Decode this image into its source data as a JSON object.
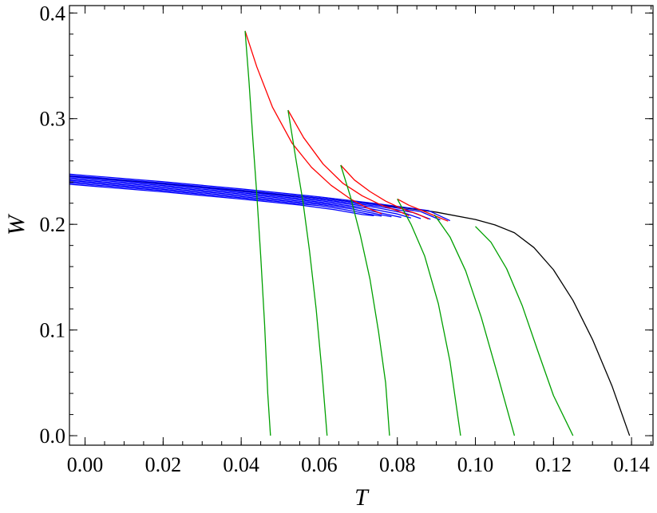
{
  "chart_data": {
    "type": "line",
    "title": "",
    "xlabel": "T",
    "ylabel": "W",
    "xlim": [
      -0.004,
      0.1455
    ],
    "ylim": [
      -0.009,
      0.407
    ],
    "x_ticks": [
      {
        "value": 0.0,
        "label": "0.00"
      },
      {
        "value": 0.02,
        "label": "0.02"
      },
      {
        "value": 0.04,
        "label": "0.04"
      },
      {
        "value": 0.06,
        "label": "0.06"
      },
      {
        "value": 0.08,
        "label": "0.08"
      },
      {
        "value": 0.1,
        "label": "0.10"
      },
      {
        "value": 0.12,
        "label": "0.12"
      },
      {
        "value": 0.14,
        "label": "0.14"
      }
    ],
    "y_ticks": [
      {
        "value": 0.0,
        "label": "0.0"
      },
      {
        "value": 0.1,
        "label": "0.1"
      },
      {
        "value": 0.2,
        "label": "0.2"
      },
      {
        "value": 0.3,
        "label": "0.3"
      },
      {
        "value": 0.4,
        "label": "0.4"
      }
    ],
    "x_minor_step": 0.005,
    "y_minor_step": 0.02,
    "grid": false,
    "legend": "none",
    "colors": {
      "black_curve": "#000000",
      "blue_band": "#0000ff",
      "red_curves": "#ff0000",
      "green_curves": "#00a000"
    },
    "series": [
      {
        "color": "#000000",
        "points": [
          [
            -0.004,
            0.2455
          ],
          [
            0.02,
            0.2383
          ],
          [
            0.04,
            0.2316
          ],
          [
            0.06,
            0.2248
          ],
          [
            0.08,
            0.2165
          ],
          [
            0.09,
            0.2115
          ],
          [
            0.1,
            0.2046
          ],
          [
            0.105,
            0.1995
          ],
          [
            0.11,
            0.192
          ],
          [
            0.115,
            0.178
          ],
          [
            0.12,
            0.157
          ],
          [
            0.125,
            0.128
          ],
          [
            0.13,
            0.091
          ],
          [
            0.135,
            0.047
          ],
          [
            0.1395,
            0.0
          ]
        ]
      },
      {
        "color": "#0000ff",
        "points": [
          [
            -0.004,
            0.2475
          ],
          [
            0.02,
            0.2403
          ],
          [
            0.04,
            0.2335
          ],
          [
            0.06,
            0.226
          ],
          [
            0.075,
            0.2195
          ],
          [
            0.088,
            0.213
          ],
          [
            0.0935,
            0.2035
          ]
        ]
      },
      {
        "color": "#0000ff",
        "points": [
          [
            -0.004,
            0.2463
          ],
          [
            0.02,
            0.2391
          ],
          [
            0.04,
            0.2323
          ],
          [
            0.06,
            0.2248
          ],
          [
            0.075,
            0.2183
          ],
          [
            0.086,
            0.212
          ],
          [
            0.091,
            0.2042
          ]
        ]
      },
      {
        "color": "#0000ff",
        "points": [
          [
            -0.004,
            0.2451
          ],
          [
            0.02,
            0.2379
          ],
          [
            0.04,
            0.2311
          ],
          [
            0.06,
            0.2236
          ],
          [
            0.075,
            0.2171
          ],
          [
            0.084,
            0.2112
          ],
          [
            0.0885,
            0.2048
          ]
        ]
      },
      {
        "color": "#0000ff",
        "points": [
          [
            -0.004,
            0.2439
          ],
          [
            0.02,
            0.2367
          ],
          [
            0.04,
            0.2299
          ],
          [
            0.06,
            0.2224
          ],
          [
            0.074,
            0.2163
          ],
          [
            0.082,
            0.2105
          ],
          [
            0.086,
            0.2054
          ]
        ]
      },
      {
        "color": "#0000ff",
        "points": [
          [
            -0.004,
            0.2427
          ],
          [
            0.02,
            0.2355
          ],
          [
            0.04,
            0.2287
          ],
          [
            0.06,
            0.2212
          ],
          [
            0.072,
            0.2156
          ],
          [
            0.08,
            0.2098
          ],
          [
            0.0835,
            0.206
          ]
        ]
      },
      {
        "color": "#0000ff",
        "points": [
          [
            -0.004,
            0.2415
          ],
          [
            0.02,
            0.2343
          ],
          [
            0.04,
            0.2275
          ],
          [
            0.06,
            0.22
          ],
          [
            0.07,
            0.2152
          ],
          [
            0.077,
            0.2098
          ],
          [
            0.081,
            0.2066
          ]
        ]
      },
      {
        "color": "#0000ff",
        "points": [
          [
            -0.004,
            0.2403
          ],
          [
            0.02,
            0.2331
          ],
          [
            0.04,
            0.2263
          ],
          [
            0.06,
            0.2188
          ],
          [
            0.068,
            0.2148
          ],
          [
            0.075,
            0.2097
          ],
          [
            0.0785,
            0.2072
          ]
        ]
      },
      {
        "color": "#0000ff",
        "points": [
          [
            -0.004,
            0.2391
          ],
          [
            0.02,
            0.2319
          ],
          [
            0.04,
            0.2251
          ],
          [
            0.06,
            0.2176
          ],
          [
            0.066,
            0.2143
          ],
          [
            0.073,
            0.2095
          ],
          [
            0.076,
            0.2078
          ]
        ]
      },
      {
        "color": "#0000ff",
        "points": [
          [
            -0.004,
            0.2379
          ],
          [
            0.02,
            0.2307
          ],
          [
            0.04,
            0.2239
          ],
          [
            0.055,
            0.2183
          ],
          [
            0.064,
            0.2138
          ],
          [
            0.071,
            0.2093
          ],
          [
            0.074,
            0.2082
          ]
        ]
      },
      {
        "color": "#ff0000",
        "points": [
          [
            0.041,
            0.383
          ],
          [
            0.044,
            0.349
          ],
          [
            0.048,
            0.311
          ],
          [
            0.053,
            0.277
          ],
          [
            0.058,
            0.254
          ],
          [
            0.063,
            0.237
          ],
          [
            0.068,
            0.224
          ],
          [
            0.072,
            0.216
          ],
          [
            0.076,
            0.21
          ]
        ]
      },
      {
        "color": "#ff0000",
        "points": [
          [
            0.052,
            0.308
          ],
          [
            0.056,
            0.282
          ],
          [
            0.061,
            0.257
          ],
          [
            0.066,
            0.239
          ],
          [
            0.071,
            0.227
          ],
          [
            0.076,
            0.218
          ],
          [
            0.08,
            0.213
          ],
          [
            0.083,
            0.208
          ]
        ]
      },
      {
        "color": "#ff0000",
        "points": [
          [
            0.0655,
            0.256
          ],
          [
            0.069,
            0.242
          ],
          [
            0.073,
            0.231
          ],
          [
            0.077,
            0.222
          ],
          [
            0.081,
            0.215
          ],
          [
            0.085,
            0.21
          ],
          [
            0.088,
            0.205
          ]
        ]
      },
      {
        "color": "#ff0000",
        "points": [
          [
            0.08,
            0.224
          ],
          [
            0.083,
            0.218
          ],
          [
            0.087,
            0.212
          ],
          [
            0.091,
            0.206
          ],
          [
            0.093,
            0.203
          ]
        ]
      },
      {
        "color": "#00a000",
        "points": [
          [
            0.041,
            0.383
          ],
          [
            0.042,
            0.335
          ],
          [
            0.043,
            0.28
          ],
          [
            0.044,
            0.228
          ],
          [
            0.045,
            0.17
          ],
          [
            0.046,
            0.105
          ],
          [
            0.0468,
            0.04
          ],
          [
            0.0475,
            0.0
          ]
        ]
      },
      {
        "color": "#00a000",
        "points": [
          [
            0.052,
            0.308
          ],
          [
            0.054,
            0.262
          ],
          [
            0.0558,
            0.222
          ],
          [
            0.0575,
            0.175
          ],
          [
            0.0592,
            0.12
          ],
          [
            0.0607,
            0.06
          ],
          [
            0.062,
            0.0
          ]
        ]
      },
      {
        "color": "#00a000",
        "points": [
          [
            0.0655,
            0.256
          ],
          [
            0.068,
            0.226
          ],
          [
            0.0705,
            0.19
          ],
          [
            0.073,
            0.148
          ],
          [
            0.0752,
            0.098
          ],
          [
            0.077,
            0.05
          ],
          [
            0.078,
            0.0
          ]
        ]
      },
      {
        "color": "#00a000",
        "points": [
          [
            0.08,
            0.224
          ],
          [
            0.0835,
            0.2
          ],
          [
            0.087,
            0.17
          ],
          [
            0.0905,
            0.125
          ],
          [
            0.0935,
            0.07
          ],
          [
            0.0962,
            0.0
          ]
        ]
      },
      {
        "color": "#00a000",
        "points": [
          [
            0.0895,
            0.209
          ],
          [
            0.0935,
            0.188
          ],
          [
            0.0975,
            0.156
          ],
          [
            0.1015,
            0.112
          ],
          [
            0.1055,
            0.06
          ],
          [
            0.11,
            0.0
          ]
        ]
      },
      {
        "color": "#00a000",
        "points": [
          [
            0.1,
            0.198
          ],
          [
            0.104,
            0.183
          ],
          [
            0.108,
            0.158
          ],
          [
            0.112,
            0.123
          ],
          [
            0.116,
            0.08
          ],
          [
            0.12,
            0.038
          ],
          [
            0.125,
            0.0
          ]
        ]
      }
    ]
  }
}
